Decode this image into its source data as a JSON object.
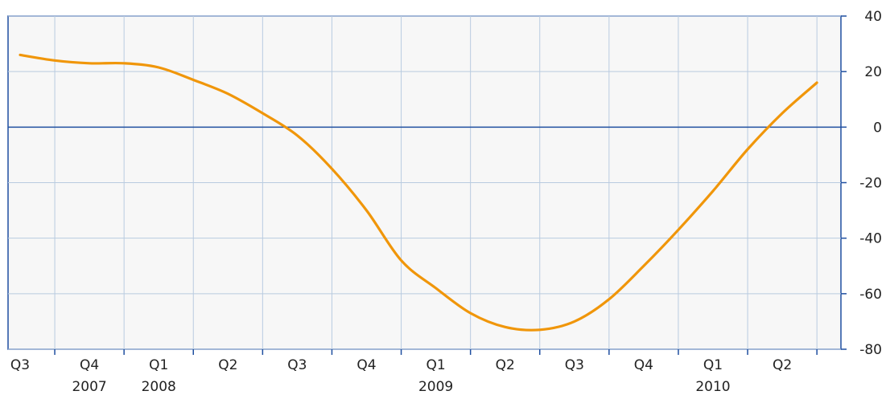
{
  "chart_data": {
    "type": "line",
    "title": "",
    "xlabel": "",
    "ylabel": "",
    "ylim": [
      -80,
      40
    ],
    "yticks": [
      40,
      20,
      0,
      -20,
      -40,
      -60,
      -80
    ],
    "y_axis_position": "right",
    "grid": true,
    "legend": "none",
    "x_range": [
      0,
      11.55
    ],
    "quarter_labels": [
      "Q3",
      "Q4",
      "Q1",
      "Q2",
      "Q3",
      "Q4",
      "Q1",
      "Q2",
      "Q3",
      "Q4",
      "Q1",
      "Q2"
    ],
    "year_labels": [
      {
        "label": "2007",
        "quarter_index": 1
      },
      {
        "label": "2008",
        "quarter_index": 2
      },
      {
        "label": "2009",
        "quarter_index": 6
      },
      {
        "label": "2010",
        "quarter_index": 10
      }
    ],
    "series": [
      {
        "color": "#f0960a",
        "x": [
          0.0,
          0.5,
          1.0,
          1.5,
          2.0,
          2.5,
          3.0,
          3.5,
          4.0,
          4.5,
          5.0,
          5.5,
          6.0,
          6.5,
          7.0,
          7.5,
          8.0,
          8.5,
          9.0,
          9.5,
          10.0,
          10.5,
          11.0,
          11.5
        ],
        "values": [
          26,
          24,
          23,
          23,
          21.5,
          17,
          12,
          5,
          -3,
          -15,
          -30,
          -48,
          -58,
          -67,
          -72,
          -73,
          -70,
          -62,
          -50,
          -37,
          -23,
          -8,
          5,
          16
        ]
      }
    ]
  },
  "colors": {
    "line": "#f0960a",
    "axis": "#1f4fa0",
    "grid": "#b9cbe0",
    "plot_bg": "#f7f7f7",
    "zero_line": "#1f4fa0"
  }
}
